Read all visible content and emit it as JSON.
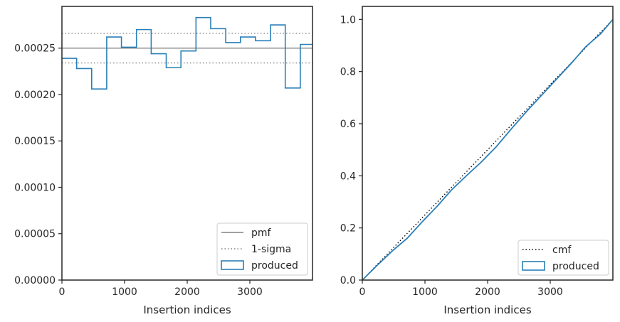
{
  "chart_data": [
    {
      "type": "step",
      "xlabel": "Insertion indices",
      "ylabel": "",
      "xlim": [
        0,
        4000
      ],
      "ylim": [
        0,
        0.000295
      ],
      "xticks": [
        0,
        1000,
        2000,
        3000
      ],
      "xtick_labels": [
        "0",
        "1000",
        "2000",
        "3000"
      ],
      "yticks": [
        0,
        5e-05,
        0.0001,
        0.00015,
        0.0002,
        0.00025
      ],
      "ytick_labels": [
        "0.00000",
        "0.00005",
        "0.00010",
        "0.00015",
        "0.00020",
        "0.00025"
      ],
      "bin_edges": [
        0,
        235,
        475,
        715,
        950,
        1190,
        1425,
        1665,
        1900,
        2140,
        2375,
        2615,
        2850,
        3090,
        3330,
        3565,
        3805,
        4000
      ],
      "series": [
        {
          "name": "produced",
          "color": "#2a7fb8",
          "values": [
            0.000239,
            0.000228,
            0.000206,
            0.000262,
            0.000251,
            0.00027,
            0.000244,
            0.000229,
            0.000247,
            0.000283,
            0.000271,
            0.000256,
            0.000262,
            0.000258,
            0.000275,
            0.000207,
            0.000254
          ]
        }
      ],
      "hlines": [
        {
          "name": "pmf",
          "y": 0.00025,
          "style": "solid",
          "color": "#808080"
        },
        {
          "name": "1-sigma",
          "y": 0.000266,
          "style": "dotted",
          "color": "#808080"
        },
        {
          "name": "",
          "y": 0.000234,
          "style": "dotted",
          "color": "#808080"
        }
      ],
      "legend": {
        "position": "lower right",
        "entries": [
          {
            "label": "pmf",
            "kind": "line",
            "color": "#808080",
            "style": "solid"
          },
          {
            "label": "1-sigma",
            "kind": "line",
            "color": "#808080",
            "style": "dotted"
          },
          {
            "label": "produced",
            "kind": "patch",
            "color": "#2a7fb8"
          }
        ]
      }
    },
    {
      "type": "line",
      "xlabel": "Insertion indices",
      "ylabel": "",
      "xlim": [
        0,
        4000
      ],
      "ylim": [
        0,
        1.05
      ],
      "xticks": [
        0,
        1000,
        2000,
        3000
      ],
      "xtick_labels": [
        "0",
        "1000",
        "2000",
        "3000"
      ],
      "yticks": [
        0,
        0.2,
        0.4,
        0.6,
        0.8,
        1.0
      ],
      "ytick_labels": [
        "0.0",
        "0.2",
        "0.4",
        "0.6",
        "0.8",
        "1.0"
      ],
      "series": [
        {
          "name": "cmf",
          "color": "#000000",
          "style": "dotted",
          "x": [
            0,
            4000
          ],
          "y": [
            0,
            1.0
          ]
        },
        {
          "name": "produced",
          "color": "#2a7fb8",
          "style": "solid",
          "x": [
            0,
            235,
            475,
            715,
            950,
            1190,
            1425,
            1665,
            1900,
            2140,
            2375,
            2615,
            2850,
            3090,
            3330,
            3565,
            3805,
            4000
          ],
          "y": [
            0,
            0.056,
            0.111,
            0.16,
            0.222,
            0.282,
            0.346,
            0.401,
            0.453,
            0.512,
            0.579,
            0.645,
            0.706,
            0.768,
            0.83,
            0.895,
            0.945,
            1.0
          ]
        }
      ],
      "legend": {
        "position": "lower right",
        "entries": [
          {
            "label": "cmf",
            "kind": "line",
            "color": "#000000",
            "style": "dotted"
          },
          {
            "label": "produced",
            "kind": "patch",
            "color": "#2a7fb8"
          }
        ]
      }
    }
  ]
}
